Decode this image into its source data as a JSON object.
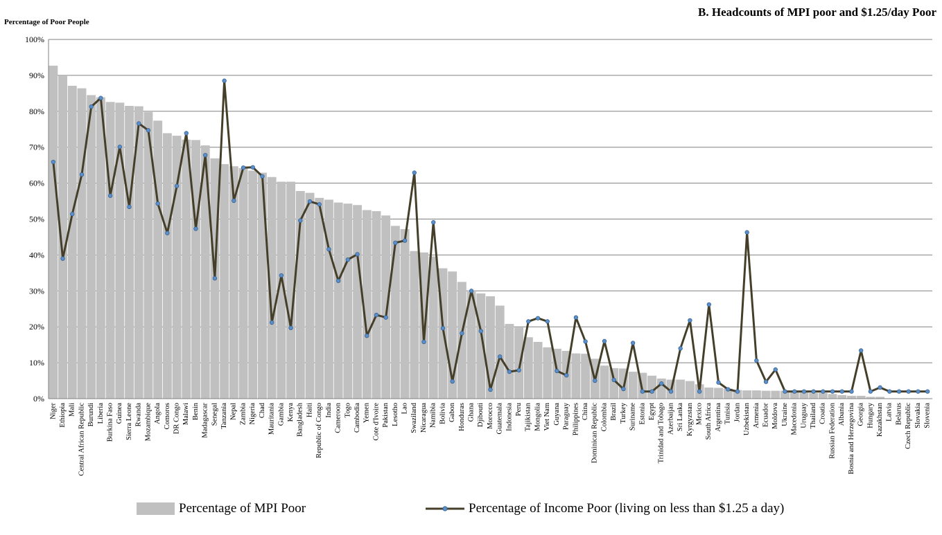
{
  "chart_data": {
    "type": "bar",
    "title": "B. Headcounts of MPI poor and $1.25/day Poor",
    "ylabel": "Percentage of Poor People",
    "ylim": [
      0,
      100
    ],
    "yticks": [
      "0%",
      "10%",
      "20%",
      "30%",
      "40%",
      "50%",
      "60%",
      "70%",
      "80%",
      "90%",
      "100%"
    ],
    "grid": true,
    "legend_position": "bottom",
    "colors": {
      "bars": "#c0c0c0",
      "line": "#453f2a",
      "markers": "#5b8fc9",
      "grid": "#808080"
    },
    "categories": [
      "Niger",
      "Ethiopia",
      "Mali",
      "Central African Republic",
      "Burundi",
      "Liberia",
      "Burkina Faso",
      "Guinea",
      "Sierra Leone",
      "Rwanda",
      "Mozambique",
      "Angola",
      "Comoros",
      "DR Congo",
      "Malawi",
      "Benin",
      "Madagascar",
      "Senegal",
      "Tanzania",
      "Nepal",
      "Zambia",
      "Nigeria",
      "Chad",
      "Mauritania",
      "Gambia",
      "Kenya",
      "Bangladesh",
      "Haiti",
      "Republic of Congo",
      "India",
      "Cameroon",
      "Togo",
      "Cambodia",
      "Yemen",
      "Cote d'Ivoire",
      "Pakistan",
      "Lesotho",
      "Lao",
      "Swaziland",
      "Nicaragua",
      "Namibia",
      "Bolivia",
      "Gabon",
      "Honduras",
      "Ghana",
      "Djibouti",
      "Morocco",
      "Guatemala",
      "Indonesia",
      "Peru",
      "Tajikistan",
      "Mongolia",
      "Viet Nam",
      "Guyana",
      "Paraguay",
      "Philippines",
      "China",
      "Dominican Republic",
      "Colombia",
      "Brazil",
      "Turkey",
      "Suriname",
      "Estonia",
      "Egypt",
      "Trinidad and Tobago",
      "Azerbaijan",
      "Sri Lanka",
      "Kyrgyzstan",
      "Mexico",
      "South Africa",
      "Argentina",
      "Tunisia",
      "Jordan",
      "Uzbekistan",
      "Armenia",
      "Ecuador",
      "Moldova",
      "Ukraine",
      "Macedonia",
      "Uruguay",
      "Thailand",
      "Croatia",
      "Russian Federation",
      "Albania",
      "Bosnia and Herzegovina",
      "Georgia",
      "Hungary",
      "Kazakhstan",
      "Latvia",
      "Belarus",
      "Czech Republic",
      "Slovakia",
      "Slovenia"
    ],
    "series": [
      {
        "name": "Percentage of MPI Poor",
        "type": "bar",
        "values": [
          92.7,
          90.0,
          87.1,
          86.4,
          84.5,
          83.9,
          82.6,
          82.4,
          81.5,
          81.4,
          79.8,
          77.4,
          73.9,
          73.2,
          72.1,
          72.0,
          70.5,
          66.9,
          65.3,
          64.7,
          64.2,
          63.5,
          62.9,
          61.7,
          60.4,
          60.4,
          57.8,
          57.3,
          55.9,
          55.4,
          54.6,
          54.3,
          53.9,
          52.5,
          52.2,
          51.0,
          48.1,
          47.2,
          41.1,
          40.7,
          39.6,
          36.3,
          35.4,
          32.5,
          30.2,
          29.3,
          28.5,
          25.9,
          20.8,
          19.8,
          17.1,
          15.8,
          14.3,
          13.9,
          13.3,
          12.6,
          12.5,
          11.1,
          9.2,
          8.5,
          8.4,
          7.5,
          7.2,
          6.4,
          5.6,
          5.3,
          5.3,
          4.9,
          4.0,
          3.1,
          3.0,
          2.8,
          2.4,
          2.3,
          2.3,
          2.2,
          2.2,
          2.2,
          1.9,
          1.7,
          1.6,
          1.6,
          1.3,
          1.0,
          0.8,
          0.8,
          0.5,
          0.5,
          0.0,
          0.0,
          0.0,
          0.0,
          0.0
        ]
      },
      {
        "name": "Percentage of Income Poor (living on less than $1.25 a day)",
        "type": "line",
        "values": [
          65.9,
          39.0,
          51.4,
          62.4,
          81.3,
          83.7,
          56.5,
          70.1,
          53.4,
          76.6,
          74.7,
          54.3,
          46.1,
          59.2,
          73.9,
          47.3,
          67.8,
          33.5,
          88.5,
          55.1,
          64.3,
          64.4,
          61.9,
          21.2,
          34.3,
          19.7,
          49.6,
          54.9,
          54.1,
          41.6,
          32.8,
          38.7,
          40.2,
          17.5,
          23.3,
          22.6,
          43.4,
          44.0,
          62.9,
          15.8,
          49.1,
          19.6,
          4.8,
          18.2,
          30.0,
          18.8,
          2.5,
          11.7,
          7.5,
          7.9,
          21.5,
          22.4,
          21.5,
          7.7,
          6.5,
          22.6,
          15.9,
          5.0,
          16.0,
          5.2,
          2.7,
          15.5,
          2.0,
          2.0,
          4.2,
          2.0,
          14.0,
          21.8,
          2.0,
          26.2,
          4.5,
          2.6,
          2.0,
          46.3,
          10.6,
          4.7,
          8.1,
          2.0,
          2.0,
          2.0,
          2.0,
          2.0,
          2.0,
          2.0,
          2.0,
          13.4,
          2.0,
          3.1,
          2.0,
          2.0,
          2.0,
          2.0,
          2.0
        ]
      }
    ]
  }
}
